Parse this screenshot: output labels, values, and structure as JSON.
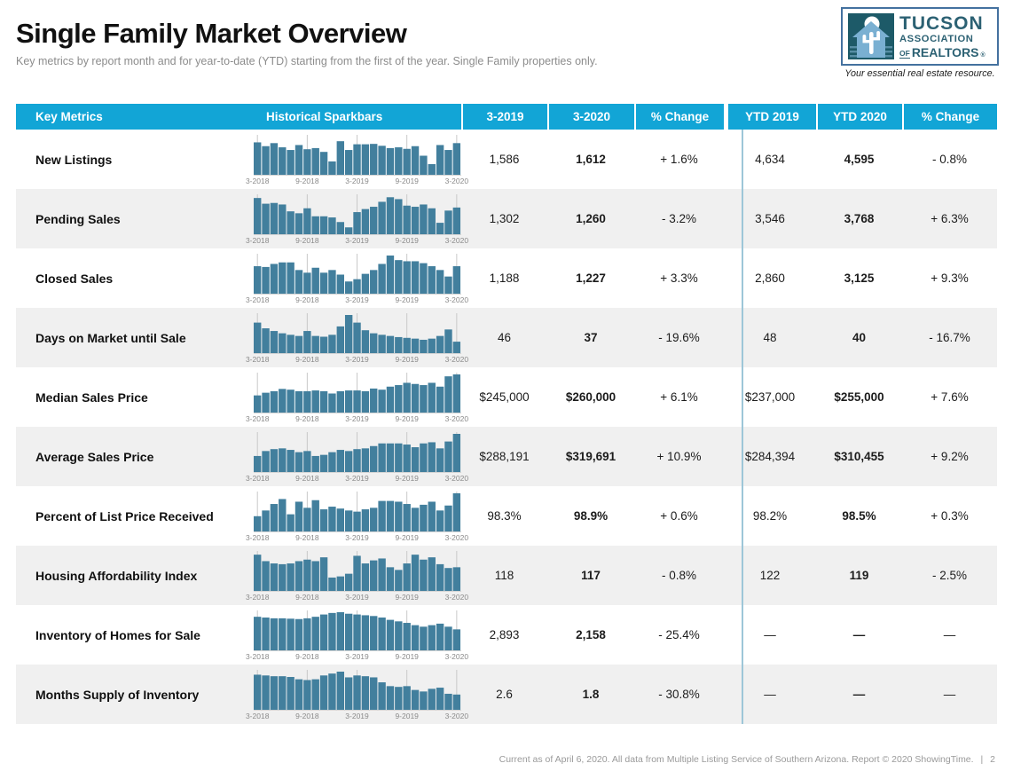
{
  "header": {
    "title": "Single Family Market Overview",
    "subtitle": "Key metrics by report month and for year-to-date (YTD) starting from the first of the year. Single Family properties only."
  },
  "logo": {
    "line1": "TUCSON",
    "line2": "ASSOCIATION",
    "line3_of": "OF",
    "line3_name": "REALTORS",
    "line3_reg": "®",
    "tagline": "Your essential real estate resource."
  },
  "colors": {
    "accent": "#12a5d6",
    "bar": "#427f9d",
    "gridline": "#c9c9c9",
    "baseline": "#d4d4d4",
    "divider": "#9dc6d8",
    "stripe": "#f0f0f0",
    "logo_teal": "#1d5a68",
    "logo_house": "#7ab0d2"
  },
  "table": {
    "columns": [
      "Key Metrics",
      "Historical Sparkbars",
      "3-2019",
      "3-2020",
      "% Change",
      "YTD 2019",
      "YTD 2020",
      "% Change"
    ],
    "sparkbar_axis_labels": [
      "3-2018",
      "9-2018",
      "3-2019",
      "9-2019",
      "3-2020"
    ],
    "rows": [
      {
        "metric": "New Listings",
        "m2019": "1,586",
        "m2020": "1,612",
        "change_m": "+ 1.6%",
        "ytd2019": "4,634",
        "ytd2020": "4,595",
        "change_ytd": "- 0.8%",
        "sparkbar": [
          0.85,
          0.75,
          0.83,
          0.72,
          0.65,
          0.78,
          0.67,
          0.7,
          0.6,
          0.35,
          0.88,
          0.65,
          0.8,
          0.8,
          0.81,
          0.76,
          0.7,
          0.72,
          0.68,
          0.75,
          0.5,
          0.28,
          0.78,
          0.65,
          0.83
        ]
      },
      {
        "metric": "Pending Sales",
        "m2019": "1,302",
        "m2020": "1,260",
        "change_m": "- 3.2%",
        "ytd2019": "3,546",
        "ytd2020": "3,768",
        "change_ytd": "+ 6.3%",
        "sparkbar": [
          0.95,
          0.8,
          0.82,
          0.78,
          0.6,
          0.55,
          0.68,
          0.47,
          0.47,
          0.44,
          0.32,
          0.18,
          0.58,
          0.66,
          0.72,
          0.85,
          0.97,
          0.92,
          0.75,
          0.72,
          0.78,
          0.68,
          0.3,
          0.62,
          0.7
        ]
      },
      {
        "metric": "Closed Sales",
        "m2019": "1,188",
        "m2020": "1,227",
        "change_m": "+ 3.3%",
        "ytd2019": "2,860",
        "ytd2020": "3,125",
        "change_ytd": "+ 9.3%",
        "sparkbar": [
          0.72,
          0.7,
          0.78,
          0.82,
          0.82,
          0.62,
          0.55,
          0.68,
          0.55,
          0.62,
          0.5,
          0.32,
          0.38,
          0.52,
          0.62,
          0.78,
          1.0,
          0.88,
          0.85,
          0.85,
          0.8,
          0.72,
          0.62,
          0.45,
          0.72
        ]
      },
      {
        "metric": "Days on Market until Sale",
        "m2019": "46",
        "m2020": "37",
        "change_m": "- 19.6%",
        "ytd2019": "48",
        "ytd2020": "40",
        "change_ytd": "- 16.7%",
        "sparkbar": [
          0.8,
          0.65,
          0.58,
          0.52,
          0.48,
          0.45,
          0.58,
          0.45,
          0.43,
          0.48,
          0.7,
          1.0,
          0.8,
          0.6,
          0.52,
          0.48,
          0.45,
          0.42,
          0.4,
          0.38,
          0.35,
          0.38,
          0.45,
          0.62,
          0.3
        ]
      },
      {
        "metric": "Median Sales Price",
        "m2019": "$245,000",
        "m2020": "$260,000",
        "change_m": "+ 6.1%",
        "ytd2019": "$237,000",
        "ytd2020": "$255,000",
        "change_ytd": "+ 7.6%",
        "sparkbar": [
          0.45,
          0.52,
          0.56,
          0.62,
          0.6,
          0.56,
          0.56,
          0.58,
          0.56,
          0.5,
          0.56,
          0.58,
          0.58,
          0.56,
          0.63,
          0.6,
          0.68,
          0.72,
          0.78,
          0.75,
          0.72,
          0.78,
          0.68,
          0.95,
          1.0
        ]
      },
      {
        "metric": "Average Sales Price",
        "m2019": "$288,191",
        "m2020": "$319,691",
        "change_m": "+ 10.9%",
        "ytd2019": "$284,394",
        "ytd2020": "$310,455",
        "change_ytd": "+ 9.2%",
        "sparkbar": [
          0.42,
          0.55,
          0.6,
          0.62,
          0.58,
          0.52,
          0.55,
          0.42,
          0.45,
          0.52,
          0.58,
          0.55,
          0.6,
          0.62,
          0.68,
          0.75,
          0.75,
          0.75,
          0.72,
          0.65,
          0.75,
          0.78,
          0.62,
          0.8,
          1.0
        ]
      },
      {
        "metric": "Percent of List Price Received",
        "m2019": "98.3%",
        "m2020": "98.9%",
        "change_m": "+ 0.6%",
        "ytd2019": "98.2%",
        "ytd2020": "98.5%",
        "change_ytd": "+ 0.3%",
        "sparkbar": [
          0.4,
          0.55,
          0.72,
          0.85,
          0.45,
          0.78,
          0.62,
          0.82,
          0.58,
          0.65,
          0.6,
          0.55,
          0.52,
          0.58,
          0.62,
          0.8,
          0.8,
          0.78,
          0.72,
          0.62,
          0.7,
          0.78,
          0.55,
          0.68,
          1.0
        ]
      },
      {
        "metric": "Housing Affordability Index",
        "m2019": "118",
        "m2020": "117",
        "change_m": "- 0.8%",
        "ytd2019": "122",
        "ytd2020": "119",
        "change_ytd": "- 2.5%",
        "sparkbar": [
          0.95,
          0.78,
          0.72,
          0.7,
          0.72,
          0.78,
          0.82,
          0.78,
          0.88,
          0.35,
          0.38,
          0.45,
          0.92,
          0.72,
          0.8,
          0.85,
          0.62,
          0.55,
          0.72,
          0.95,
          0.82,
          0.88,
          0.7,
          0.6,
          0.62
        ]
      },
      {
        "metric": "Inventory of Homes for Sale",
        "m2019": "2,893",
        "m2020": "2,158",
        "change_m": "- 25.4%",
        "ytd2019": "—",
        "ytd2020": "—",
        "change_ytd": "—",
        "sparkbar": [
          0.88,
          0.86,
          0.84,
          0.84,
          0.83,
          0.82,
          0.84,
          0.88,
          0.94,
          0.98,
          1.0,
          0.96,
          0.94,
          0.92,
          0.9,
          0.86,
          0.8,
          0.76,
          0.72,
          0.66,
          0.62,
          0.66,
          0.7,
          0.62,
          0.55
        ]
      },
      {
        "metric": "Months Supply of Inventory",
        "m2019": "2.6",
        "m2020": "1.8",
        "change_m": "- 30.8%",
        "ytd2019": "—",
        "ytd2020": "—",
        "change_ytd": "—",
        "sparkbar": [
          0.92,
          0.9,
          0.88,
          0.88,
          0.86,
          0.8,
          0.78,
          0.8,
          0.9,
          0.95,
          1.0,
          0.85,
          0.9,
          0.88,
          0.85,
          0.72,
          0.62,
          0.6,
          0.62,
          0.52,
          0.48,
          0.55,
          0.58,
          0.42,
          0.4
        ]
      }
    ]
  },
  "footer": {
    "note": "Current as of April 6, 2020. All data from Multiple Listing Service of Southern Arizona. Report © 2020 ShowingTime.",
    "separator": "|",
    "page": "2"
  }
}
